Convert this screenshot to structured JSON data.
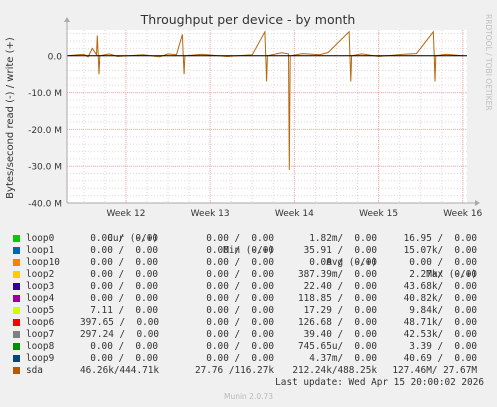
{
  "chart_data": {
    "type": "line",
    "title": "Throughput per device - by month",
    "ylabel": "Bytes/second read (-) / write (+)",
    "watermark": "RRDTOOL / TOBI OETIKER",
    "ylim": [
      -40000000,
      7000000
    ],
    "yticks": [
      {
        "value": 0,
        "label": "0.0"
      },
      {
        "value": -10000000,
        "label": "-10.0 M"
      },
      {
        "value": -20000000,
        "label": "-20.0 M"
      },
      {
        "value": -30000000,
        "label": "-30.0 M"
      },
      {
        "value": -40000000,
        "label": "-40.0 M"
      }
    ],
    "xlim": [
      11.3,
      16.05
    ],
    "xticks": [
      {
        "value": 12,
        "label": "Week 12"
      },
      {
        "value": 13,
        "label": "Week 13"
      },
      {
        "value": 14,
        "label": "Week 14"
      },
      {
        "value": 15,
        "label": "Week 15"
      },
      {
        "value": 16,
        "label": "Week 16"
      }
    ],
    "grid": true,
    "series": [
      {
        "name": "sda",
        "color": "#b5680e",
        "points": [
          [
            11.3,
            0
          ],
          [
            11.5,
            400000
          ],
          [
            11.55,
            -300000
          ],
          [
            11.6,
            2000000
          ],
          [
            11.65,
            300000
          ],
          [
            11.66,
            5500000
          ],
          [
            11.67,
            200000
          ],
          [
            11.68,
            -5000000
          ],
          [
            11.69,
            0
          ],
          [
            11.8,
            500000
          ],
          [
            11.9,
            -200000
          ],
          [
            12.2,
            300000
          ],
          [
            12.4,
            -300000
          ],
          [
            12.5,
            500000
          ],
          [
            12.6,
            300000
          ],
          [
            12.67,
            5800000
          ],
          [
            12.68,
            200000
          ],
          [
            12.69,
            -5000000
          ],
          [
            12.7,
            0
          ],
          [
            12.9,
            400000
          ],
          [
            13.2,
            -200000
          ],
          [
            13.5,
            300000
          ],
          [
            13.65,
            6500000
          ],
          [
            13.66,
            300000
          ],
          [
            13.67,
            -7000000
          ],
          [
            13.68,
            0
          ],
          [
            13.85,
            800000
          ],
          [
            13.93,
            500000
          ],
          [
            13.94,
            -31000000
          ],
          [
            13.95,
            0
          ],
          [
            14.1,
            600000
          ],
          [
            14.3,
            300000
          ],
          [
            14.4,
            900000
          ],
          [
            14.65,
            6500000
          ],
          [
            14.66,
            300000
          ],
          [
            14.67,
            -7000000
          ],
          [
            14.68,
            0
          ],
          [
            14.8,
            500000
          ],
          [
            15.0,
            -200000
          ],
          [
            15.3,
            400000
          ],
          [
            15.45,
            600000
          ],
          [
            15.65,
            6500000
          ],
          [
            15.66,
            300000
          ],
          [
            15.67,
            -7000000
          ],
          [
            15.68,
            0
          ],
          [
            15.8,
            400000
          ],
          [
            16.0,
            0
          ]
        ]
      }
    ]
  },
  "legend": {
    "headers": {
      "cur": "Cur (-/+)",
      "min": "Min (-/+)",
      "avg": "Avg (-/+)",
      "max": "Max (-/+)"
    },
    "rows": [
      {
        "name": "loop0",
        "color": "#00cc00",
        "cur": "0.00 /  0.00",
        "min": "0.00 /  0.00",
        "avg": "1.82m/  0.00",
        "max": "16.95 /  0.00"
      },
      {
        "name": "loop1",
        "color": "#0066b3",
        "cur": "0.00 /  0.00",
        "min": "0.00 /  0.00",
        "avg": "35.91 /  0.00",
        "max": "15.07k/  0.00"
      },
      {
        "name": "loop10",
        "color": "#ff8000",
        "cur": "0.00 /  0.00",
        "min": "0.00 /  0.00",
        "avg": "0.00 /  0.00",
        "max": "0.00 /  0.00"
      },
      {
        "name": "loop2",
        "color": "#ffcc00",
        "cur": "0.00 /  0.00",
        "min": "0.00 /  0.00",
        "avg": "387.39m/  0.00",
        "max": "2.27k/  0.00"
      },
      {
        "name": "loop3",
        "color": "#330099",
        "cur": "0.00 /  0.00",
        "min": "0.00 /  0.00",
        "avg": "22.40 /  0.00",
        "max": "43.68k/  0.00"
      },
      {
        "name": "loop4",
        "color": "#990099",
        "cur": "0.00 /  0.00",
        "min": "0.00 /  0.00",
        "avg": "118.85 /  0.00",
        "max": "40.82k/  0.00"
      },
      {
        "name": "loop5",
        "color": "#ccff00",
        "cur": "7.11 /  0.00",
        "min": "0.00 /  0.00",
        "avg": "17.29 /  0.00",
        "max": "9.84k/  0.00"
      },
      {
        "name": "loop6",
        "color": "#ff0000",
        "cur": "397.65 /  0.00",
        "min": "0.00 /  0.00",
        "avg": "126.68 /  0.00",
        "max": "48.71k/  0.00"
      },
      {
        "name": "loop7",
        "color": "#808080",
        "cur": "297.24 /  0.00",
        "min": "0.00 /  0.00",
        "avg": "39.40 /  0.00",
        "max": "42.53k/  0.00"
      },
      {
        "name": "loop8",
        "color": "#008f00",
        "cur": "0.00 /  0.00",
        "min": "0.00 /  0.00",
        "avg": "745.65u/  0.00",
        "max": "3.39 /  0.00"
      },
      {
        "name": "loop9",
        "color": "#00487d",
        "cur": "0.00 /  0.00",
        "min": "0.00 /  0.00",
        "avg": "4.37m/  0.00",
        "max": "40.69 /  0.00"
      },
      {
        "name": "sda",
        "color": "#b35a00",
        "cur": "46.26k/444.71k",
        "min": "27.76 /116.27k",
        "avg": "212.24k/488.25k",
        "max": "127.46M/ 27.67M"
      }
    ]
  },
  "footer": {
    "last_update": "Last update: Wed Apr 15 20:00:02 2026",
    "munin_version": "Munin 2.0.73"
  }
}
